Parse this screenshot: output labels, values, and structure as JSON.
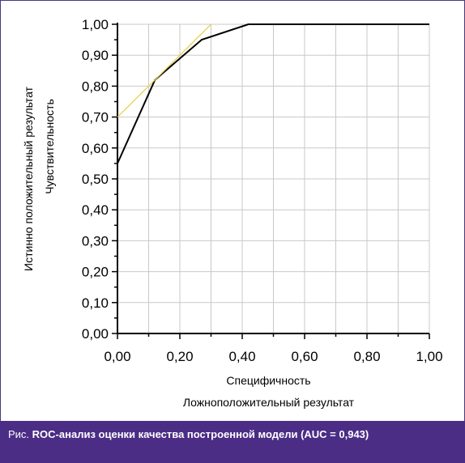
{
  "chart_data": {
    "type": "line",
    "xlabel_lines": [
      "Специфичность",
      "Ложноположительный результат"
    ],
    "ylabel_lines": [
      "Истинно положительный результат",
      "Чувствительность"
    ],
    "xlim": [
      0,
      1
    ],
    "ylim": [
      0,
      1
    ],
    "x_ticks": [
      "0,00",
      "0,20",
      "0,40",
      "0,60",
      "0,80",
      "1,00"
    ],
    "y_ticks": [
      "0,00",
      "0,10",
      "0,20",
      "0,30",
      "0,40",
      "0,50",
      "0,60",
      "0,70",
      "0,80",
      "0,90",
      "1,00"
    ],
    "grid": true,
    "series": [
      {
        "color": "#000000",
        "points": [
          [
            0.0,
            0.55
          ],
          [
            0.12,
            0.82
          ],
          [
            0.27,
            0.95
          ],
          [
            0.42,
            1.0
          ],
          [
            1.0,
            1.0
          ]
        ]
      },
      {
        "color": "#e8d24a",
        "points": [
          [
            0.0,
            0.7
          ],
          [
            0.3,
            1.0
          ]
        ]
      }
    ],
    "vertical_black_segment": [
      [
        0.0,
        0.0
      ],
      [
        0.0,
        0.55
      ]
    ]
  },
  "caption": {
    "prefix": "Рис.",
    "text": "ROC-анализ оценки качества построенной модели  (AUC = 0,943)"
  }
}
